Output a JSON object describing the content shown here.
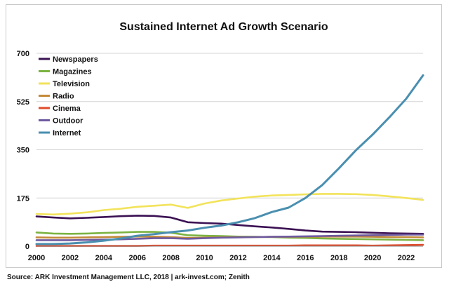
{
  "chart_data": {
    "type": "line",
    "title": "Sustained Internet Ad Growth Scenario",
    "xlabel": "",
    "ylabel": "",
    "xlim": [
      2000,
      2023
    ],
    "ylim": [
      0,
      700
    ],
    "x_ticks": [
      "2000",
      "2002",
      "2004",
      "2006",
      "2008",
      "2010",
      "2012",
      "2014",
      "2016",
      "2018",
      "2020",
      "2022"
    ],
    "y_ticks": [
      "0",
      "175",
      "350",
      "525",
      "700"
    ],
    "grid": "horizontal",
    "legend": "top-left",
    "x": [
      2000,
      2001,
      2002,
      2003,
      2004,
      2005,
      2006,
      2007,
      2008,
      2009,
      2010,
      2011,
      2012,
      2013,
      2014,
      2015,
      2016,
      2017,
      2018,
      2019,
      2020,
      2021,
      2022,
      2023
    ],
    "series": [
      {
        "name": "Newspapers",
        "color": "#3b1153",
        "values": [
          108,
          104,
          101,
          103,
          106,
          109,
          111,
          110,
          104,
          87,
          84,
          82,
          77,
          72,
          68,
          63,
          57,
          53,
          52,
          51,
          49,
          47,
          46,
          45
        ]
      },
      {
        "name": "Magazines",
        "color": "#7cb342",
        "values": [
          50,
          46,
          45,
          46,
          48,
          50,
          52,
          52,
          49,
          40,
          38,
          37,
          35,
          34,
          33,
          31,
          30,
          28,
          27,
          26,
          25,
          24,
          23,
          22
        ]
      },
      {
        "name": "Television",
        "color": "#f2e35b",
        "values": [
          117,
          115,
          118,
          123,
          131,
          136,
          143,
          147,
          151,
          139,
          155,
          166,
          173,
          180,
          184,
          186,
          188,
          190,
          190,
          189,
          186,
          181,
          175,
          168
        ]
      },
      {
        "name": "Radio",
        "color": "#c48a3a",
        "values": [
          32,
          31,
          31,
          32,
          33,
          34,
          35,
          35,
          33,
          30,
          31,
          32,
          33,
          33,
          34,
          34,
          35,
          35,
          35,
          35,
          34,
          33,
          33,
          32
        ]
      },
      {
        "name": "Cinema",
        "color": "#e04b2a",
        "values": [
          1,
          1,
          1,
          1,
          1,
          1,
          1,
          2,
          2,
          2,
          2,
          2,
          2,
          2,
          2,
          2,
          3,
          3,
          3,
          3,
          2,
          3,
          4,
          5
        ]
      },
      {
        "name": "Outdoor",
        "color": "#6e5aa0",
        "values": [
          22,
          22,
          22,
          23,
          24,
          25,
          27,
          29,
          29,
          27,
          29,
          31,
          32,
          33,
          34,
          35,
          36,
          37,
          38,
          39,
          40,
          41,
          42,
          42
        ]
      },
      {
        "name": "Internet",
        "color": "#4a8fb0",
        "values": [
          8,
          8,
          10,
          14,
          20,
          28,
          38,
          44,
          51,
          57,
          67,
          75,
          87,
          102,
          124,
          140,
          175,
          222,
          283,
          348,
          405,
          468,
          535,
          620
        ]
      }
    ]
  },
  "footer": {
    "source": "Source: ARK Investment Management LLC, 2018 | ark-invest.com; Zenith"
  }
}
